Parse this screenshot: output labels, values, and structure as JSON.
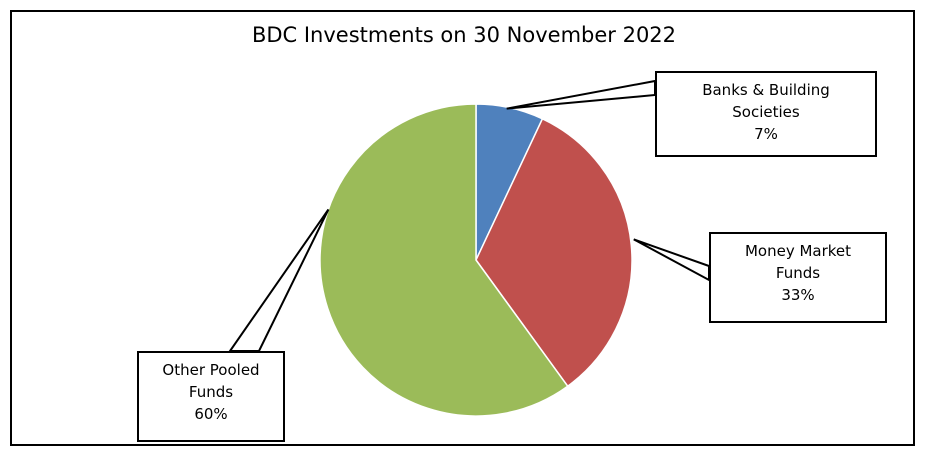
{
  "chart_data": {
    "type": "pie",
    "title": "BDC Investments on 30 November 2022",
    "slices": [
      {
        "name_lines": [
          "Banks & Building",
          "Societies"
        ],
        "value": 7,
        "label": "7%",
        "color": "#4f81bd"
      },
      {
        "name_lines": [
          "Money Market",
          "Funds"
        ],
        "value": 33,
        "label": "33%",
        "color": "#c0504d"
      },
      {
        "name_lines": [
          "Other Pooled",
          "Funds"
        ],
        "value": 60,
        "label": "60%",
        "color": "#9bbb59"
      }
    ],
    "legend": "none",
    "data_labels": "callouts"
  }
}
